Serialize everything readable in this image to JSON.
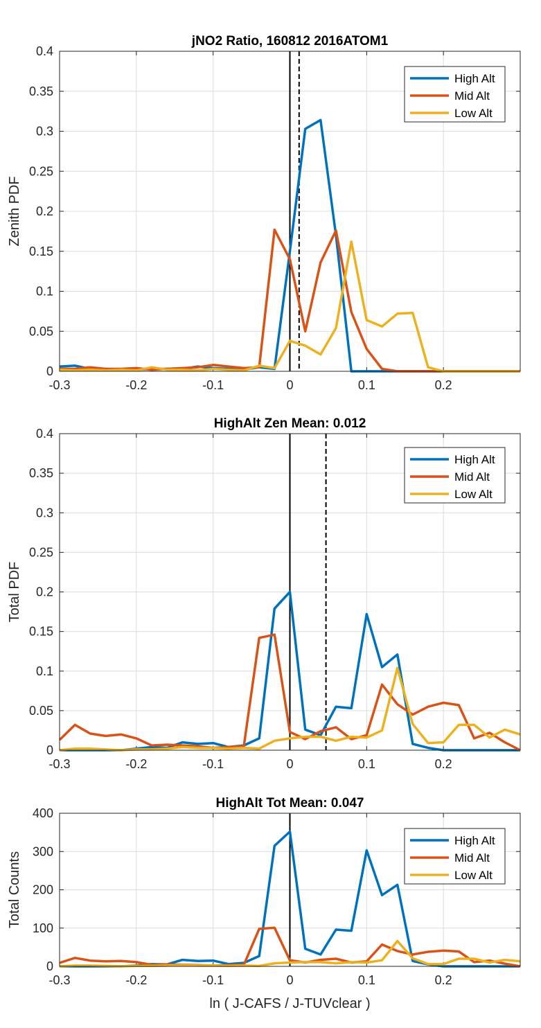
{
  "chart_data": [
    {
      "type": "line",
      "title": "jNO2 Ratio, 160812 2016ATOM1",
      "xlabel": "",
      "ylabel": "Zenith PDF",
      "xlim": [
        -0.3,
        0.3
      ],
      "ylim": [
        0,
        0.4
      ],
      "xticks": [
        -0.3,
        -0.2,
        -0.1,
        0,
        0.1,
        0.2
      ],
      "xtick_labels": [
        "-0.3",
        "-0.2",
        "-0.1",
        "0",
        "0.1",
        "0.2"
      ],
      "yticks": [
        0,
        0.05,
        0.1,
        0.15,
        0.2,
        0.25,
        0.3,
        0.35,
        0.4
      ],
      "ytick_labels": [
        "0",
        "0.05",
        "0.1",
        "0.15",
        "0.2",
        "0.25",
        "0.3",
        "0.35",
        "0.4"
      ],
      "grid": true,
      "legend_position": "top-right",
      "vlines": [
        {
          "x": 0,
          "style": "solid"
        },
        {
          "x": 0.012,
          "style": "dashed"
        }
      ],
      "x": [
        -0.3,
        -0.28,
        -0.26,
        -0.24,
        -0.22,
        -0.2,
        -0.18,
        -0.16,
        -0.14,
        -0.12,
        -0.1,
        -0.08,
        -0.06,
        -0.04,
        -0.02,
        0,
        0.02,
        0.04,
        0.06,
        0.08,
        0.1,
        0.12,
        0.14,
        0.16,
        0.18,
        0.2,
        0.22,
        0.24,
        0.26,
        0.28,
        0.3
      ],
      "series": [
        {
          "name": "High Alt",
          "color": "#0072BD",
          "values": [
            0.006,
            0.007,
            0.003,
            0.003,
            0.002,
            0.002,
            0.003,
            0.003,
            0.003,
            0.006,
            0.004,
            0.003,
            0.002,
            0.005,
            0.003,
            0.15,
            0.303,
            0.314,
            0.17,
            0.0,
            0.0,
            0.0,
            0.0,
            0.0,
            0.0,
            0.0,
            0.0,
            0.0,
            0.0,
            0.0,
            0.0
          ]
        },
        {
          "name": "Mid Alt",
          "color": "#D95319",
          "values": [
            0.003,
            0.003,
            0.005,
            0.003,
            0.003,
            0.004,
            0.002,
            0.003,
            0.004,
            0.005,
            0.008,
            0.006,
            0.004,
            0.005,
            0.177,
            0.14,
            0.05,
            0.136,
            0.176,
            0.074,
            0.028,
            0.003,
            0.0,
            0.0,
            0.0,
            0.0,
            0.0,
            0.0,
            0.0,
            0.0,
            0.0
          ]
        },
        {
          "name": "Low Alt",
          "color": "#EDB120",
          "values": [
            0.002,
            0.001,
            0.002,
            0.001,
            0.002,
            0.001,
            0.005,
            0.002,
            0.002,
            0.001,
            0.003,
            0.002,
            0.001,
            0.007,
            0.004,
            0.038,
            0.032,
            0.021,
            0.054,
            0.162,
            0.064,
            0.056,
            0.072,
            0.073,
            0.005,
            0.0,
            0.0,
            0.0,
            0.0,
            0.0,
            0.0
          ]
        }
      ]
    },
    {
      "type": "line",
      "title": "HighAlt Zen Mean: 0.012",
      "xlabel": "",
      "ylabel": "Total PDF",
      "xlim": [
        -0.3,
        0.3
      ],
      "ylim": [
        0,
        0.4
      ],
      "xticks": [
        -0.3,
        -0.2,
        -0.1,
        0,
        0.1,
        0.2
      ],
      "xtick_labels": [
        "-0.3",
        "-0.2",
        "-0.1",
        "0",
        "0.1",
        "0.2"
      ],
      "yticks": [
        0,
        0.05,
        0.1,
        0.15,
        0.2,
        0.25,
        0.3,
        0.35,
        0.4
      ],
      "ytick_labels": [
        "0",
        "0.05",
        "0.1",
        "0.15",
        "0.2",
        "0.25",
        "0.3",
        "0.35",
        "0.4"
      ],
      "grid": true,
      "legend_position": "top-right",
      "vlines": [
        {
          "x": 0,
          "style": "solid"
        },
        {
          "x": 0.047,
          "style": "dashed"
        }
      ],
      "x": [
        -0.3,
        -0.28,
        -0.26,
        -0.24,
        -0.22,
        -0.2,
        -0.18,
        -0.16,
        -0.14,
        -0.12,
        -0.1,
        -0.08,
        -0.06,
        -0.04,
        -0.02,
        0,
        0.02,
        0.04,
        0.06,
        0.08,
        0.1,
        0.12,
        0.14,
        0.16,
        0.18,
        0.2,
        0.22,
        0.24,
        0.26,
        0.28,
        0.3
      ],
      "series": [
        {
          "name": "High Alt",
          "color": "#0072BD",
          "values": [
            0.0,
            0.0,
            0.0,
            0.0,
            0.0,
            0.002,
            0.004,
            0.003,
            0.01,
            0.008,
            0.009,
            0.004,
            0.006,
            0.015,
            0.179,
            0.2,
            0.026,
            0.019,
            0.055,
            0.053,
            0.172,
            0.105,
            0.121,
            0.008,
            0.003,
            0.0,
            0.0,
            0.0,
            0.0,
            0.0,
            0.0
          ]
        },
        {
          "name": "Mid Alt",
          "color": "#D95319",
          "values": [
            0.013,
            0.032,
            0.021,
            0.018,
            0.02,
            0.015,
            0.006,
            0.007,
            0.006,
            0.005,
            0.003,
            0.004,
            0.005,
            0.142,
            0.146,
            0.023,
            0.014,
            0.024,
            0.029,
            0.014,
            0.019,
            0.083,
            0.058,
            0.045,
            0.055,
            0.06,
            0.057,
            0.015,
            0.022,
            0.01,
            0.0
          ]
        },
        {
          "name": "Low Alt",
          "color": "#EDB120",
          "values": [
            0.0,
            0.002,
            0.002,
            0.001,
            0.0,
            0.001,
            0.001,
            0.002,
            0.004,
            0.003,
            0.003,
            0.002,
            0.003,
            0.002,
            0.012,
            0.015,
            0.017,
            0.017,
            0.012,
            0.017,
            0.016,
            0.025,
            0.104,
            0.033,
            0.009,
            0.01,
            0.032,
            0.032,
            0.016,
            0.026,
            0.02
          ]
        }
      ]
    },
    {
      "type": "line",
      "title": "HighAlt Tot Mean: 0.047",
      "xlabel": "ln ( J-CAFS / J-TUVclear )",
      "ylabel": "Total Counts",
      "xlim": [
        -0.3,
        0.3
      ],
      "ylim": [
        0,
        400
      ],
      "xticks": [
        -0.3,
        -0.2,
        -0.1,
        0,
        0.1,
        0.2
      ],
      "xtick_labels": [
        "-0.3",
        "-0.2",
        "-0.1",
        "0",
        "0.1",
        "0.2"
      ],
      "yticks": [
        0,
        100,
        200,
        300,
        400
      ],
      "ytick_labels": [
        "0",
        "100",
        "200",
        "300",
        "400"
      ],
      "grid": true,
      "legend_position": "top-right",
      "vlines": [
        {
          "x": 0,
          "style": "solid"
        }
      ],
      "x": [
        -0.3,
        -0.28,
        -0.26,
        -0.24,
        -0.22,
        -0.2,
        -0.18,
        -0.16,
        -0.14,
        -0.12,
        -0.1,
        -0.08,
        -0.06,
        -0.04,
        -0.02,
        0,
        0.02,
        0.04,
        0.06,
        0.08,
        0.1,
        0.12,
        0.14,
        0.16,
        0.18,
        0.2,
        0.22,
        0.24,
        0.26,
        0.28,
        0.3
      ],
      "series": [
        {
          "name": "High Alt",
          "color": "#0072BD",
          "values": [
            0,
            0,
            0,
            0,
            0,
            2,
            6,
            5,
            17,
            14,
            15,
            6,
            9,
            27,
            315,
            352,
            46,
            31,
            96,
            93,
            303,
            186,
            213,
            14,
            5,
            0,
            0,
            0,
            0,
            0,
            0
          ]
        },
        {
          "name": "Mid Alt",
          "color": "#D95319",
          "values": [
            9,
            22,
            15,
            13,
            14,
            11,
            4,
            5,
            4,
            3,
            2,
            3,
            4,
            98,
            101,
            16,
            10,
            17,
            20,
            10,
            13,
            57,
            40,
            31,
            38,
            41,
            39,
            11,
            15,
            7,
            0
          ]
        },
        {
          "name": "Low Alt",
          "color": "#EDB120",
          "values": [
            0,
            2,
            2,
            1,
            0,
            1,
            1,
            2,
            3,
            2,
            2,
            1,
            2,
            1,
            8,
            10,
            11,
            11,
            8,
            11,
            10,
            16,
            66,
            21,
            6,
            6,
            20,
            20,
            10,
            17,
            13
          ]
        }
      ]
    }
  ]
}
